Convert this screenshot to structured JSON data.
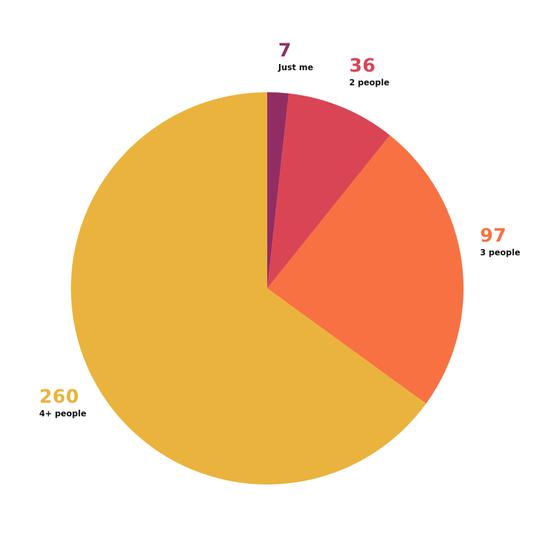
{
  "chart_data": {
    "type": "pie",
    "start_angle": "12 o'clock",
    "direction": "clockwise",
    "slices": [
      {
        "label": "Just me",
        "value": 7,
        "value_label": "7",
        "color": "#922d63"
      },
      {
        "label": "2 people",
        "value": 36,
        "value_label": "36",
        "color": "#d94555"
      },
      {
        "label": "3 people",
        "value": 97,
        "value_label": "97",
        "color": "#f87142"
      },
      {
        "label": "4+ people",
        "value": 260,
        "value_label": "260",
        "color": "#eab33e"
      }
    ]
  }
}
